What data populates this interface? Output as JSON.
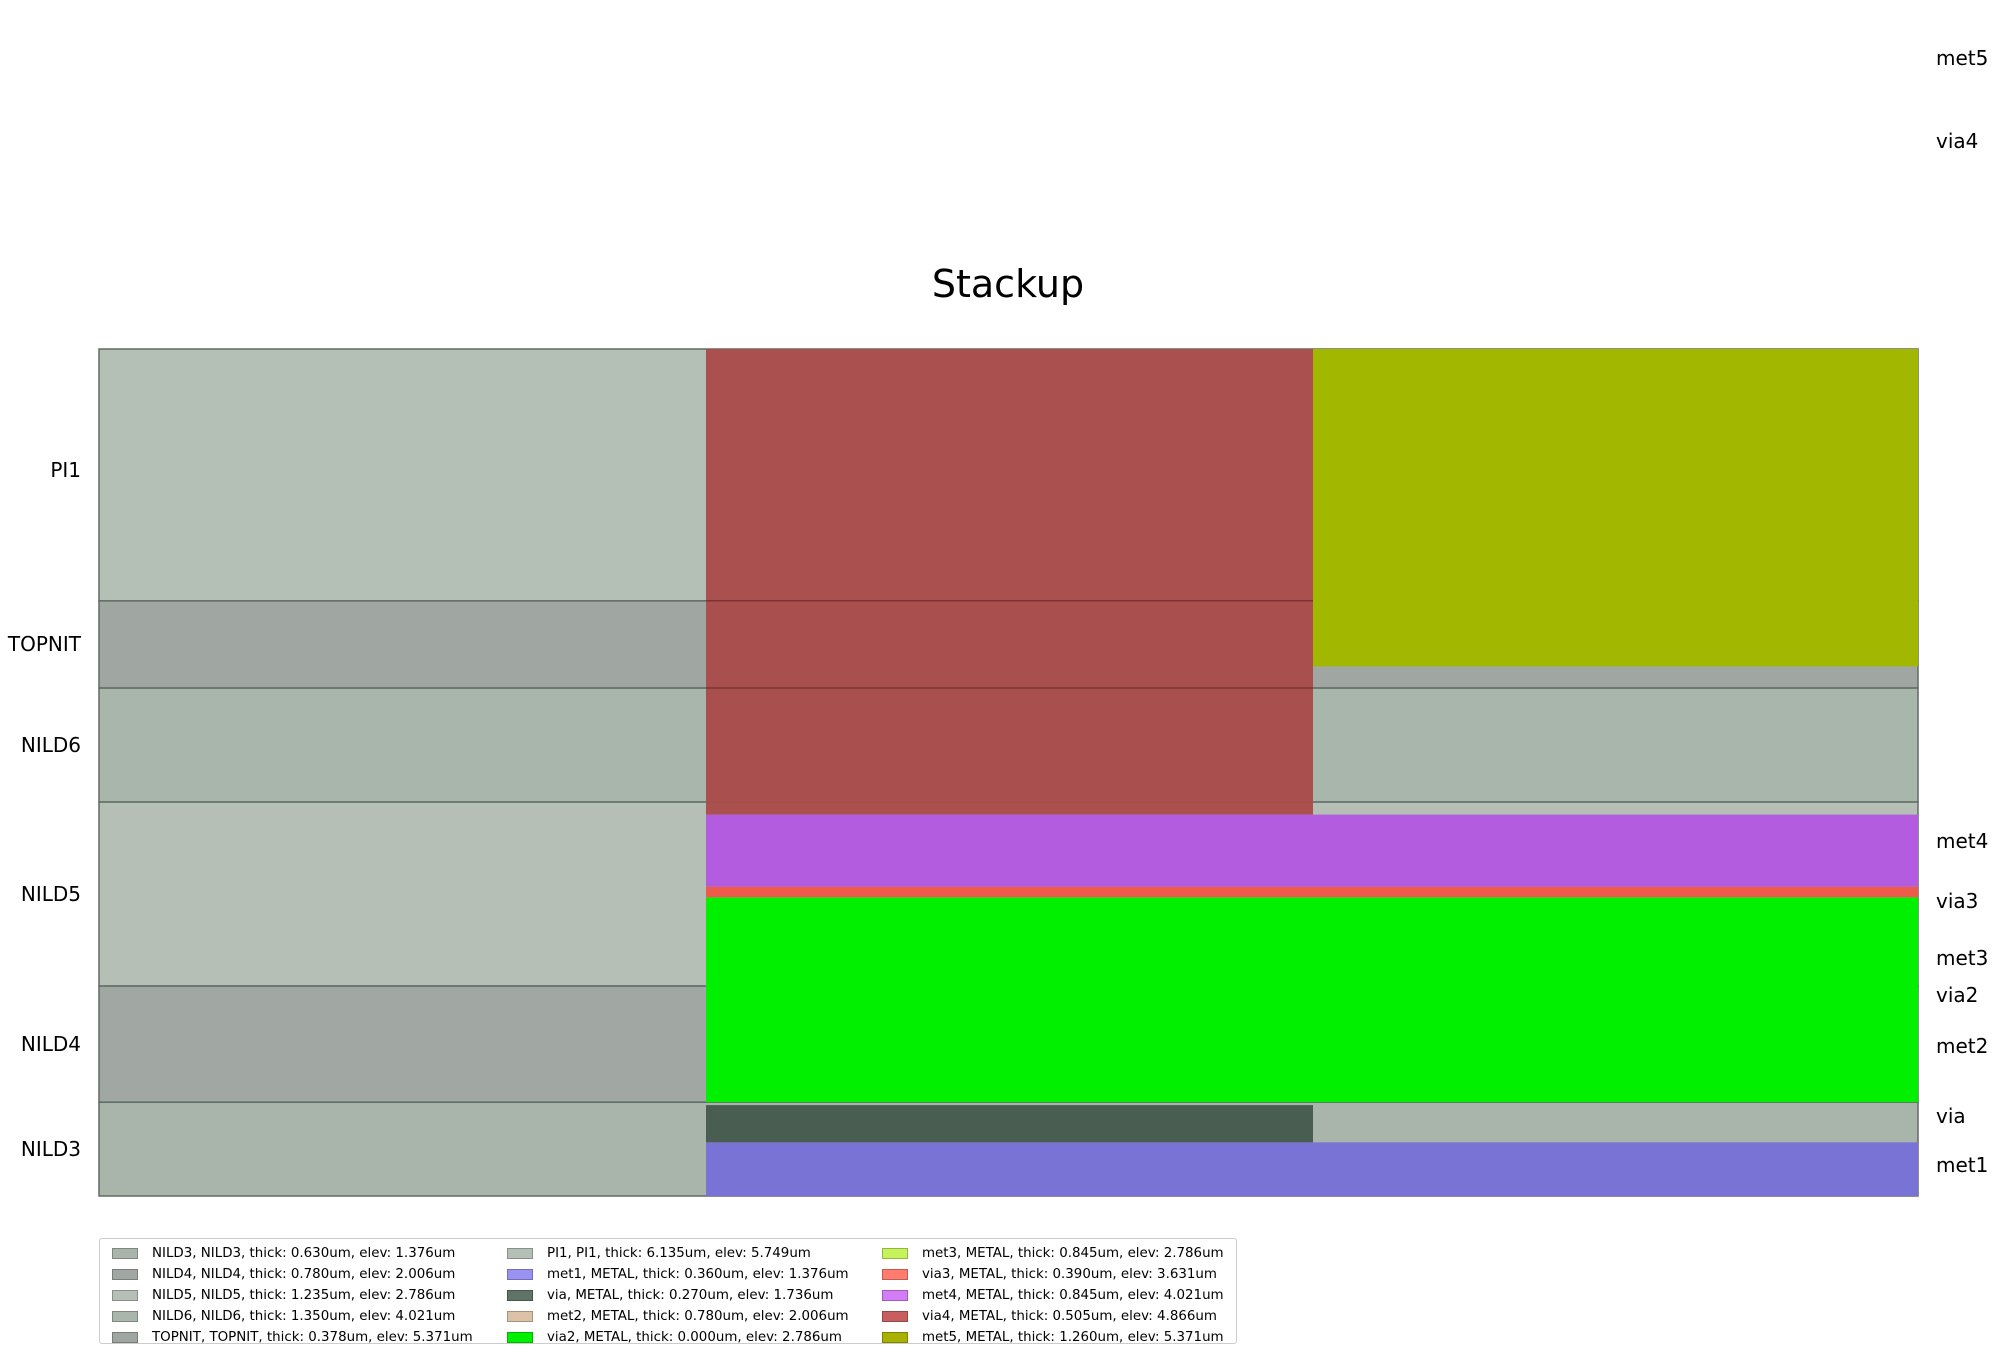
{
  "title": "Stackup",
  "chart_data": {
    "type": "stackup",
    "dielectrics": [
      {
        "name": "NILD3",
        "label": "NILD3",
        "bottom": 0.0,
        "top": 0.63,
        "color": "#a9b5ab"
      },
      {
        "name": "NILD4",
        "label": "NILD4",
        "bottom": 0.63,
        "top": 1.41,
        "color": "#a1a8a3"
      },
      {
        "name": "NILD5",
        "label": "NILD5",
        "bottom": 1.41,
        "top": 2.645,
        "color": "#b5bfb6"
      },
      {
        "name": "NILD6",
        "label": "NILD6",
        "bottom": 2.645,
        "top": 3.41,
        "color": "#a9b6ab"
      },
      {
        "name": "TOPNIT",
        "label": "TOPNIT",
        "bottom": 3.41,
        "top": 3.995,
        "color": "#a0a7a2"
      },
      {
        "name": "PI1",
        "label": "PI1",
        "bottom": 3.995,
        "top": 5.685,
        "color": "#b4bfb6"
      }
    ],
    "metals": [
      {
        "name": "met1",
        "label": "met1",
        "bottom": 0.0,
        "top": 0.36,
        "col": "full",
        "color": "#7a73d6"
      },
      {
        "name": "via",
        "label": "via",
        "bottom": 0.36,
        "top": 0.61,
        "col": "middle",
        "color": "#4a5d51"
      },
      {
        "name": "met2",
        "label": "met2",
        "bottom": 0.63,
        "top": 2.0,
        "col": "full",
        "color": "#00f000"
      },
      {
        "name": "via2",
        "label": "via2",
        "bottom": 1.96,
        "top": 2.0,
        "col": "full",
        "color": "#00f000"
      },
      {
        "name": "met3",
        "label": "met3",
        "bottom": 2.0,
        "top": 2.005,
        "col": "full",
        "color": "#00f000"
      },
      {
        "name": "via3",
        "label": "via3",
        "bottom": 2.005,
        "top": 2.075,
        "col": "full",
        "color": "#ef5a4a"
      },
      {
        "name": "met4",
        "label": "met4",
        "bottom": 2.075,
        "top": 2.56,
        "col": "full",
        "color": "#b45ce0"
      },
      {
        "name": "via4",
        "label": "via4",
        "bottom": 2.56,
        "top": 5.685,
        "col": "middle",
        "color": "#a94c4b"
      },
      {
        "name": "met5",
        "label": "met5",
        "bottom": 3.555,
        "top": 5.685,
        "col": "right",
        "color": "#a2b800"
      }
    ],
    "right_labels": [
      {
        "name": "met1",
        "text": "met1",
        "y": 0.21
      },
      {
        "name": "via",
        "text": "via",
        "y": 0.54
      },
      {
        "name": "met2",
        "text": "met2",
        "y": 1.01
      },
      {
        "name": "via2",
        "text": "via2",
        "y": 1.35
      },
      {
        "name": "met3",
        "text": "met3",
        "y": 1.6
      },
      {
        "name": "via3",
        "text": "via3",
        "y": 1.98
      },
      {
        "name": "met4",
        "text": "met4",
        "y": 2.38
      },
      {
        "name": "via4",
        "text": "via4",
        "y": 7.08
      },
      {
        "name": "met5",
        "text": "met5",
        "y": 7.64
      }
    ],
    "legend": [
      {
        "text": "NILD3, NILD3, thick: 0.630um, elev: 1.376um",
        "color": "#a9b5ab"
      },
      {
        "text": "NILD4, NILD4, thick: 0.780um, elev: 2.006um",
        "color": "#a1a8a3"
      },
      {
        "text": "NILD5, NILD5, thick: 1.235um, elev: 2.786um",
        "color": "#b5bfb6"
      },
      {
        "text": "NILD6, NILD6, thick: 1.350um, elev: 4.021um",
        "color": "#a9b6ab"
      },
      {
        "text": "TOPNIT, TOPNIT, thick: 0.378um, elev: 5.371um",
        "color": "#a0a7a2"
      },
      {
        "text": "PI1, PI1, thick: 6.135um, elev: 5.749um",
        "color": "#b4bfb6"
      },
      {
        "text": "met1, METAL, thick: 0.360um, elev: 1.376um",
        "color": "#9a92f2"
      },
      {
        "text": "via, METAL, thick: 0.270um, elev: 1.736um",
        "color": "#5f7466"
      },
      {
        "text": "met2, METAL, thick: 0.780um, elev: 2.006um",
        "color": "#dcc2a6"
      },
      {
        "text": "via2, METAL, thick: 0.000um, elev: 2.786um",
        "color": "#00f000"
      },
      {
        "text": "met3, METAL, thick: 0.845um, elev: 2.786um",
        "color": "#c6f25a"
      },
      {
        "text": "via3, METAL, thick: 0.390um, elev: 3.631um",
        "color": "#ff7b6e"
      },
      {
        "text": "met4, METAL, thick: 0.845um, elev: 4.021um",
        "color": "#d47cf7"
      },
      {
        "text": "via4, METAL, thick: 0.505um, elev: 4.866um",
        "color": "#c65f5e"
      },
      {
        "text": "met5, METAL, thick: 1.260um, elev: 5.371um",
        "color": "#a8b000"
      }
    ]
  }
}
